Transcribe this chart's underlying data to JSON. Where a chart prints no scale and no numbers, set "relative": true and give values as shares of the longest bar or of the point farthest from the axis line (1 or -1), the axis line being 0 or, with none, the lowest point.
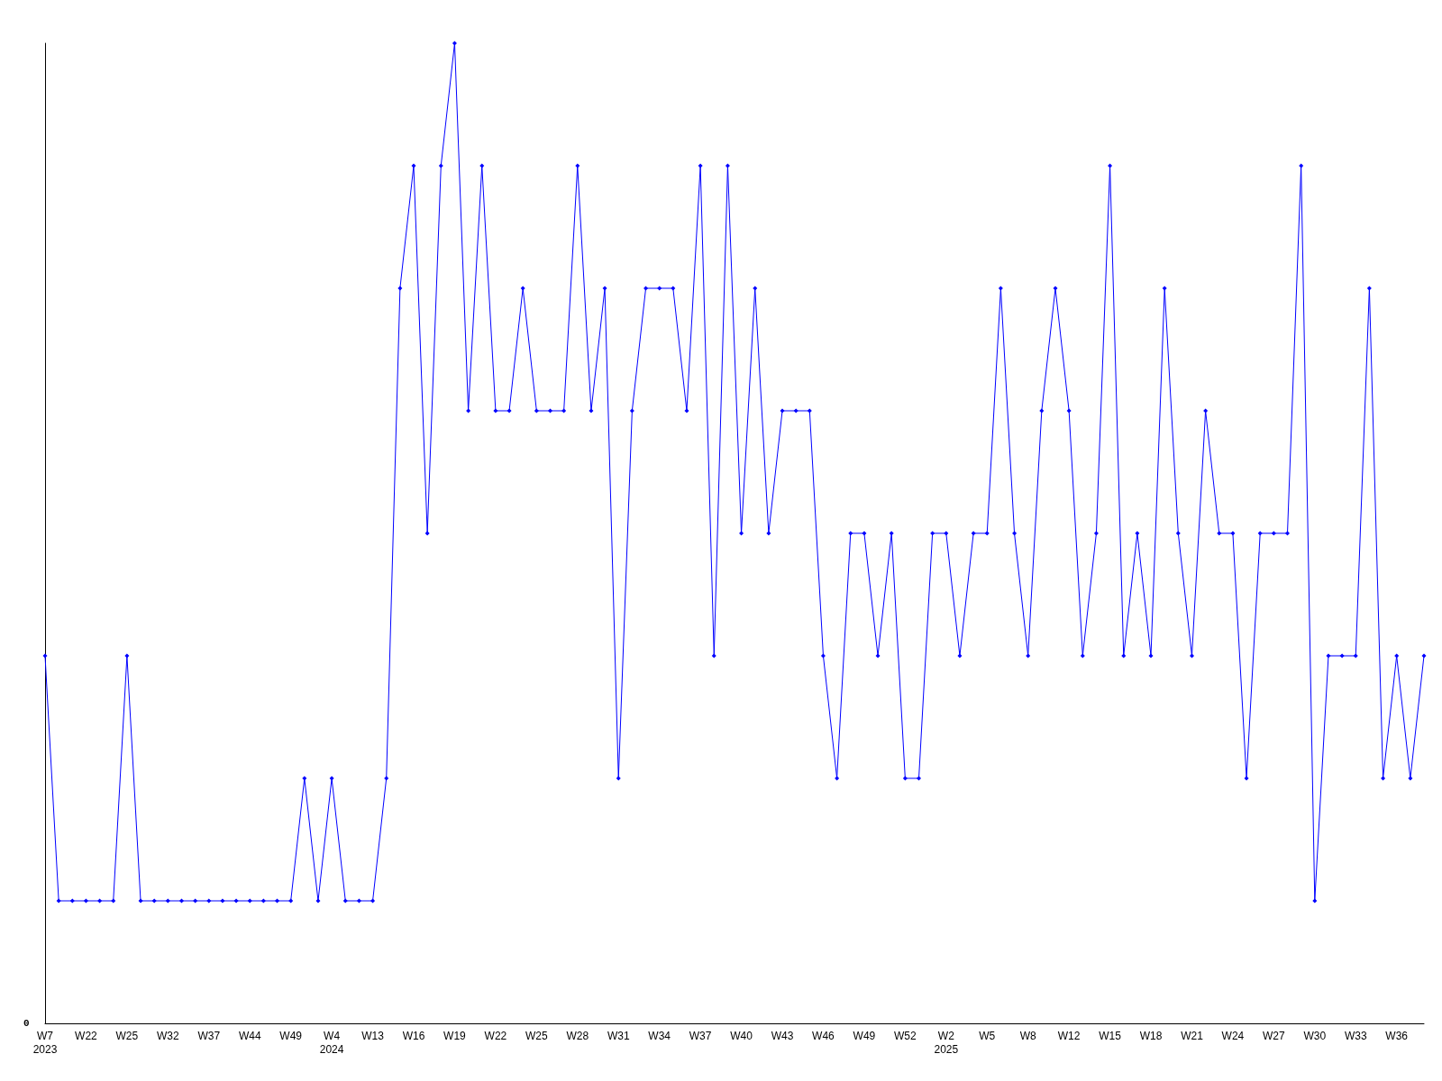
{
  "chart_data": {
    "type": "line",
    "relative": true,
    "marker": "diamond",
    "grid": false,
    "annotations": [
      "0"
    ],
    "categories": [
      "W7\n2023",
      null,
      null,
      "W22",
      null,
      null,
      "W25",
      null,
      null,
      "W32",
      null,
      null,
      "W37",
      null,
      null,
      "W44",
      null,
      null,
      "W49",
      null,
      null,
      "W4\n2024",
      null,
      null,
      "W13",
      null,
      null,
      "W16",
      null,
      null,
      "W19",
      null,
      null,
      "W22",
      null,
      null,
      "W25",
      null,
      null,
      "W28",
      null,
      null,
      "W31",
      null,
      null,
      "W34",
      null,
      null,
      "W37",
      null,
      null,
      "W40",
      null,
      null,
      "W43",
      null,
      null,
      "W46",
      null,
      null,
      "W49",
      null,
      null,
      "W52",
      null,
      null,
      "W2\n2025",
      null,
      null,
      "W5",
      null,
      null,
      "W8",
      null,
      null,
      "W12",
      null,
      null,
      "W15",
      null,
      null,
      "W18",
      null,
      null,
      "W21",
      null,
      null,
      "W24",
      null,
      null,
      "W27",
      null,
      null,
      "W30",
      null,
      null,
      "W33",
      null,
      null,
      "W36",
      null,
      null
    ],
    "series": [
      {
        "color": "#0000ff",
        "values": [
          0.375,
          0.125,
          0.125,
          0.125,
          0.125,
          0.125,
          0.375,
          0.125,
          0.125,
          0.125,
          0.125,
          0.125,
          0.125,
          0.125,
          0.125,
          0.125,
          0.125,
          0.125,
          0.125,
          0.25,
          0.125,
          0.25,
          0.125,
          0.125,
          0.125,
          0.25,
          0.75,
          0.875,
          0.5,
          0.875,
          1,
          0.625,
          0.875,
          0.625,
          0.625,
          0.75,
          0.625,
          0.625,
          0.625,
          0.875,
          0.625,
          0.75,
          0.25,
          0.625,
          0.75,
          0.75,
          0.75,
          0.625,
          0.875,
          0.375,
          0.875,
          0.5,
          0.75,
          0.5,
          0.625,
          0.625,
          0.625,
          0.375,
          0.25,
          0.5,
          0.5,
          0.375,
          0.5,
          0.25,
          0.25,
          0.5,
          0.5,
          0.375,
          0.5,
          0.5,
          0.75,
          0.5,
          0.375,
          0.625,
          0.75,
          0.625,
          0.375,
          0.5,
          0.875,
          0.375,
          0.5,
          0.375,
          0.75,
          0.5,
          0.375,
          0.625,
          0.5,
          0.5,
          0.25,
          0.5,
          0.5,
          0.5,
          0.875,
          0.125,
          0.375,
          0.375,
          0.375,
          0.75,
          0.25,
          0.375,
          0.25,
          0.375
        ]
      }
    ]
  }
}
